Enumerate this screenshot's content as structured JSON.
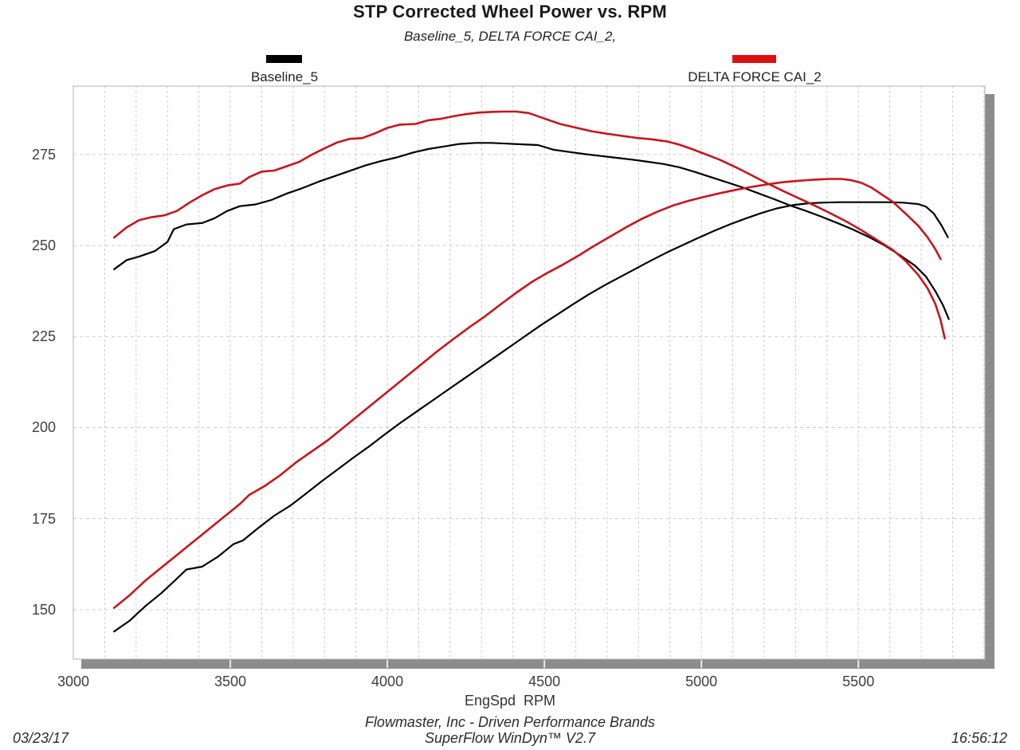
{
  "header": {
    "title": "STP Corrected Wheel Power vs. RPM",
    "subtitle": "Baseline_5, DELTA FORCE CAI_2,"
  },
  "legend": [
    {
      "label": "Baseline_5",
      "color": "#000000"
    },
    {
      "label": "DELTA FORCE CAI_2",
      "color": "#dd1111"
    }
  ],
  "footer": {
    "company": "Flowmaster, Inc - Driven Performance Brands",
    "software": "SuperFlow WinDyn™ V2.7",
    "date": "03/23/17",
    "time": "16:56:12"
  },
  "colors": {
    "black_curve": "#000000",
    "red_curve": "#c8151d",
    "grid": "#cccccc",
    "plot_border": "#b0b0b0",
    "shadow": "#8c8c8c",
    "notch": "#e9e9e9"
  },
  "chart_data": {
    "type": "line",
    "title": "STP Corrected Wheel Power vs. RPM",
    "xlabel": "EngSpd  RPM",
    "ylabel": "",
    "x_range": [
      3000,
      5903
    ],
    "y_range": [
      136.4,
      293.8
    ],
    "x_ticks": [
      3000,
      3500,
      4000,
      4500,
      5000,
      5500
    ],
    "y_ticks": [
      150,
      175,
      200,
      225,
      250,
      275
    ],
    "x_minor_step": 100,
    "grid": "dashed",
    "legend_position": "top",
    "series": [
      {
        "name": "Baseline_5",
        "curve": "upper (torque)",
        "color": "#000000",
        "width": 2.2,
        "points": [
          [
            3130,
            243.5
          ],
          [
            3170,
            246
          ],
          [
            3210,
            247
          ],
          [
            3260,
            248.5
          ],
          [
            3300,
            251
          ],
          [
            3320,
            254.5
          ],
          [
            3360,
            255.8
          ],
          [
            3410,
            256.2
          ],
          [
            3450,
            257.5
          ],
          [
            3490,
            259.5
          ],
          [
            3530,
            260.8
          ],
          [
            3580,
            261.3
          ],
          [
            3630,
            262.5
          ],
          [
            3680,
            264.3
          ],
          [
            3730,
            265.8
          ],
          [
            3780,
            267.5
          ],
          [
            3830,
            269
          ],
          [
            3880,
            270.5
          ],
          [
            3930,
            272
          ],
          [
            3980,
            273.2
          ],
          [
            4030,
            274.2
          ],
          [
            4080,
            275.5
          ],
          [
            4130,
            276.5
          ],
          [
            4180,
            277.2
          ],
          [
            4230,
            277.9
          ],
          [
            4280,
            278.2
          ],
          [
            4330,
            278.2
          ],
          [
            4380,
            278
          ],
          [
            4430,
            277.8
          ],
          [
            4480,
            277.6
          ],
          [
            4530,
            276.3
          ],
          [
            4580,
            275.7
          ],
          [
            4630,
            275.1
          ],
          [
            4680,
            274.6
          ],
          [
            4730,
            274.1
          ],
          [
            4780,
            273.6
          ],
          [
            4830,
            273
          ],
          [
            4880,
            272.4
          ],
          [
            4930,
            271.5
          ],
          [
            4980,
            270.2
          ],
          [
            5030,
            268.8
          ],
          [
            5080,
            267.4
          ],
          [
            5130,
            266
          ],
          [
            5180,
            264.4
          ],
          [
            5230,
            262.8
          ],
          [
            5280,
            261.1
          ],
          [
            5330,
            259.6
          ],
          [
            5380,
            258
          ],
          [
            5430,
            256.3
          ],
          [
            5480,
            254.5
          ],
          [
            5530,
            252.5
          ],
          [
            5580,
            250.2
          ],
          [
            5630,
            247.5
          ],
          [
            5680,
            244.5
          ],
          [
            5715,
            241.5
          ],
          [
            5745,
            237.5
          ],
          [
            5770,
            233.5
          ],
          [
            5788,
            229.8
          ]
        ]
      },
      {
        "name": "Baseline_5",
        "curve": "lower (power)",
        "color": "#000000",
        "width": 2.2,
        "points": [
          [
            3130,
            144
          ],
          [
            3180,
            147
          ],
          [
            3230,
            151
          ],
          [
            3280,
            154.5
          ],
          [
            3330,
            158.5
          ],
          [
            3360,
            161
          ],
          [
            3410,
            161.8
          ],
          [
            3460,
            164.5
          ],
          [
            3510,
            168
          ],
          [
            3540,
            169
          ],
          [
            3590,
            172.5
          ],
          [
            3640,
            175.8
          ],
          [
            3690,
            178.5
          ],
          [
            3740,
            181.8
          ],
          [
            3790,
            185.2
          ],
          [
            3840,
            188.4
          ],
          [
            3890,
            191.6
          ],
          [
            3940,
            194.7
          ],
          [
            3990,
            198
          ],
          [
            4040,
            201.2
          ],
          [
            4090,
            204.2
          ],
          [
            4140,
            207.2
          ],
          [
            4190,
            210.2
          ],
          [
            4240,
            213.2
          ],
          [
            4290,
            216.2
          ],
          [
            4340,
            219.2
          ],
          [
            4390,
            222.2
          ],
          [
            4440,
            225.2
          ],
          [
            4490,
            228.2
          ],
          [
            4540,
            231
          ],
          [
            4590,
            233.8
          ],
          [
            4640,
            236.5
          ],
          [
            4690,
            239
          ],
          [
            4740,
            241.3
          ],
          [
            4790,
            243.6
          ],
          [
            4840,
            245.9
          ],
          [
            4890,
            248.1
          ],
          [
            4940,
            250.1
          ],
          [
            4990,
            252.1
          ],
          [
            5040,
            254
          ],
          [
            5090,
            255.8
          ],
          [
            5140,
            257.4
          ],
          [
            5190,
            258.9
          ],
          [
            5240,
            260.2
          ],
          [
            5290,
            261.1
          ],
          [
            5340,
            261.6
          ],
          [
            5390,
            261.8
          ],
          [
            5440,
            261.9
          ],
          [
            5490,
            261.9
          ],
          [
            5540,
            261.9
          ],
          [
            5590,
            261.9
          ],
          [
            5640,
            261.8
          ],
          [
            5690,
            261.4
          ],
          [
            5715,
            260.7
          ],
          [
            5740,
            258.8
          ],
          [
            5765,
            255.5
          ],
          [
            5785,
            252.3
          ]
        ]
      },
      {
        "name": "DELTA FORCE CAI_2",
        "curve": "upper (torque)",
        "color": "#c8151d",
        "width": 2.6,
        "points": [
          [
            3130,
            252.2
          ],
          [
            3170,
            255
          ],
          [
            3210,
            257
          ],
          [
            3250,
            257.8
          ],
          [
            3290,
            258.3
          ],
          [
            3330,
            259.5
          ],
          [
            3370,
            261.8
          ],
          [
            3410,
            263.8
          ],
          [
            3450,
            265.5
          ],
          [
            3490,
            266.5
          ],
          [
            3530,
            267
          ],
          [
            3560,
            268.8
          ],
          [
            3600,
            270.3
          ],
          [
            3640,
            270.6
          ],
          [
            3680,
            271.8
          ],
          [
            3720,
            273
          ],
          [
            3760,
            275
          ],
          [
            3800,
            276.7
          ],
          [
            3840,
            278.3
          ],
          [
            3880,
            279.3
          ],
          [
            3920,
            279.5
          ],
          [
            3960,
            280.8
          ],
          [
            4000,
            282.3
          ],
          [
            4040,
            283.2
          ],
          [
            4090,
            283.4
          ],
          [
            4130,
            284.4
          ],
          [
            4170,
            284.8
          ],
          [
            4210,
            285.5
          ],
          [
            4250,
            286.1
          ],
          [
            4290,
            286.5
          ],
          [
            4330,
            286.7
          ],
          [
            4370,
            286.8
          ],
          [
            4410,
            286.8
          ],
          [
            4450,
            286.4
          ],
          [
            4500,
            284.9
          ],
          [
            4550,
            283.4
          ],
          [
            4600,
            282.4
          ],
          [
            4650,
            281.4
          ],
          [
            4700,
            280.7
          ],
          [
            4750,
            280.1
          ],
          [
            4800,
            279.5
          ],
          [
            4840,
            279.2
          ],
          [
            4890,
            278.6
          ],
          [
            4930,
            277.7
          ],
          [
            4970,
            276.5
          ],
          [
            5010,
            275.2
          ],
          [
            5060,
            273.5
          ],
          [
            5110,
            271.5
          ],
          [
            5160,
            269.3
          ],
          [
            5210,
            267.1
          ],
          [
            5260,
            265
          ],
          [
            5310,
            263
          ],
          [
            5360,
            261
          ],
          [
            5410,
            258.9
          ],
          [
            5460,
            256.7
          ],
          [
            5510,
            254.2
          ],
          [
            5560,
            251.5
          ],
          [
            5610,
            248.8
          ],
          [
            5650,
            245.8
          ],
          [
            5690,
            242
          ],
          [
            5720,
            238.3
          ],
          [
            5745,
            234
          ],
          [
            5762,
            229.5
          ],
          [
            5775,
            224.5
          ]
        ]
      },
      {
        "name": "DELTA FORCE CAI_2",
        "curve": "lower (power)",
        "color": "#c8151d",
        "width": 2.6,
        "points": [
          [
            3130,
            150.5
          ],
          [
            3180,
            154
          ],
          [
            3230,
            158
          ],
          [
            3280,
            161.5
          ],
          [
            3330,
            165
          ],
          [
            3380,
            168.5
          ],
          [
            3430,
            172
          ],
          [
            3480,
            175.5
          ],
          [
            3530,
            179
          ],
          [
            3560,
            181.5
          ],
          [
            3610,
            184
          ],
          [
            3660,
            187
          ],
          [
            3710,
            190.5
          ],
          [
            3760,
            193.5
          ],
          [
            3810,
            196.5
          ],
          [
            3860,
            200
          ],
          [
            3910,
            203.5
          ],
          [
            3960,
            207
          ],
          [
            4010,
            210.5
          ],
          [
            4060,
            214
          ],
          [
            4110,
            217.5
          ],
          [
            4160,
            221
          ],
          [
            4210,
            224.3
          ],
          [
            4260,
            227.5
          ],
          [
            4310,
            230.5
          ],
          [
            4360,
            233.8
          ],
          [
            4410,
            237
          ],
          [
            4460,
            240
          ],
          [
            4510,
            242.5
          ],
          [
            4560,
            244.8
          ],
          [
            4610,
            247.3
          ],
          [
            4660,
            250
          ],
          [
            4710,
            252.5
          ],
          [
            4760,
            255
          ],
          [
            4810,
            257.3
          ],
          [
            4860,
            259.3
          ],
          [
            4910,
            261
          ],
          [
            4960,
            262.3
          ],
          [
            5010,
            263.4
          ],
          [
            5060,
            264.4
          ],
          [
            5110,
            265.3
          ],
          [
            5160,
            266.1
          ],
          [
            5210,
            266.8
          ],
          [
            5260,
            267.4
          ],
          [
            5310,
            267.8
          ],
          [
            5360,
            268.1
          ],
          [
            5410,
            268.3
          ],
          [
            5445,
            268.3
          ],
          [
            5475,
            268
          ],
          [
            5510,
            267.2
          ],
          [
            5540,
            266
          ],
          [
            5570,
            264.3
          ],
          [
            5610,
            262
          ],
          [
            5650,
            258.8
          ],
          [
            5690,
            255.5
          ],
          [
            5720,
            252.3
          ],
          [
            5745,
            249
          ],
          [
            5762,
            246.3
          ]
        ]
      }
    ]
  }
}
